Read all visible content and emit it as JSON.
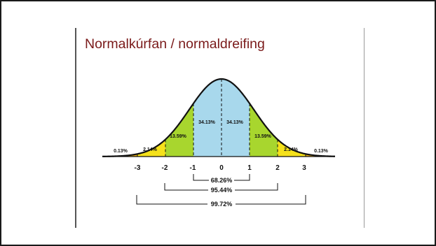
{
  "slide": {
    "title": "Normalkúrfan / normaldreifing",
    "title_color": "#7a1a1a"
  },
  "diagram": {
    "axis_labels": [
      "-3",
      "-2",
      "-1",
      "0",
      "1",
      "2",
      "3"
    ],
    "region_labels": {
      "tail_left": "0.13%",
      "outer_left": "2.14%",
      "mid_left": "13.59%",
      "center_left": "34.13%",
      "center_right": "34.13%",
      "mid_right": "13.59%",
      "outer_right": "2.14%",
      "tail_right": "0.13%"
    },
    "brackets": [
      "68.26%",
      "95.44%",
      "99.72%"
    ],
    "colors": {
      "center": "#a8d8ec",
      "middle": "#a8d62e",
      "outer": "#f5e11a",
      "tail": "#f0b010",
      "curve": "#111111"
    }
  }
}
